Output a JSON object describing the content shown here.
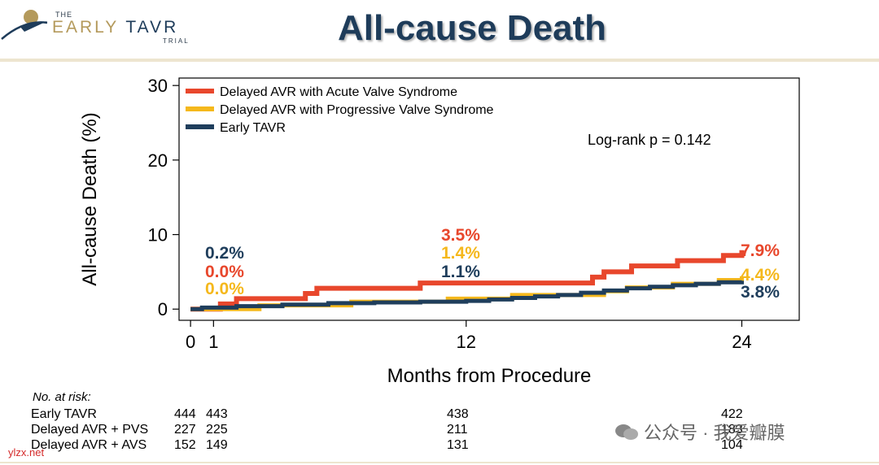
{
  "header": {
    "logo_the": "THE",
    "logo_early": "EARLY",
    "logo_tavr": "TAVR",
    "logo_trial": "TRIAL",
    "title": "All-cause Death"
  },
  "colors": {
    "acute": "#e8472c",
    "progressive": "#f5b81c",
    "early": "#1f3e5c"
  },
  "chart_data": {
    "type": "line",
    "title": "All-cause Death",
    "xlabel": "Months from Procedure",
    "ylabel": "All-cause Death (%)",
    "xlim": [
      -0.5,
      26.5
    ],
    "ylim": [
      -1.5,
      31
    ],
    "xticks": [
      0,
      1,
      12,
      24
    ],
    "yticks": [
      0,
      10,
      20,
      30
    ],
    "legend_position": "top-left",
    "annotation": "Log-rank p = 0.142",
    "series": [
      {
        "name": "Delayed AVR with Acute Valve Syndrome",
        "color": "#e8472c",
        "x": [
          0,
          1,
          1.3,
          2,
          3,
          4,
          5,
          5.5,
          6,
          7,
          8,
          9,
          10,
          11,
          12,
          13,
          14,
          15,
          16,
          17,
          17.5,
          18,
          19,
          19.2,
          20,
          21,
          21.2,
          22,
          23,
          23.2,
          24
        ],
        "y": [
          0,
          0,
          0.7,
          1.4,
          1.4,
          1.4,
          2.1,
          2.8,
          2.8,
          2.8,
          2.8,
          2.8,
          3.5,
          3.5,
          3.5,
          3.5,
          3.5,
          3.5,
          3.5,
          3.5,
          4.3,
          5.0,
          5.0,
          5.8,
          5.8,
          5.8,
          6.5,
          6.5,
          6.5,
          7.2,
          7.9
        ]
      },
      {
        "name": "Delayed AVR with Progressive Valve Syndrome",
        "color": "#f5b81c",
        "x": [
          0,
          1,
          2,
          3,
          4,
          5,
          6,
          7,
          8,
          9,
          10,
          11,
          11.2,
          12,
          13,
          14,
          15,
          16,
          17,
          18,
          19,
          20,
          21,
          22,
          23,
          24
        ],
        "y": [
          0,
          0,
          0,
          0.5,
          0.5,
          0.5,
          0.5,
          1.0,
          1.0,
          1.0,
          1.0,
          1.0,
          1.4,
          1.4,
          1.4,
          1.9,
          1.9,
          1.9,
          1.9,
          2.4,
          2.9,
          2.9,
          3.4,
          3.4,
          3.9,
          4.4
        ]
      },
      {
        "name": "Early TAVR",
        "color": "#1f3e5c",
        "x": [
          0,
          0.5,
          1,
          2,
          3,
          4,
          5,
          6,
          7,
          8,
          9,
          10,
          11,
          12,
          13,
          14,
          15,
          16,
          17,
          18,
          19,
          20,
          21,
          22,
          23,
          24
        ],
        "y": [
          0,
          0.2,
          0.2,
          0.4,
          0.4,
          0.6,
          0.6,
          0.8,
          0.8,
          0.9,
          0.9,
          1.0,
          1.0,
          1.1,
          1.3,
          1.5,
          1.7,
          1.9,
          2.2,
          2.5,
          2.8,
          3.0,
          3.2,
          3.4,
          3.6,
          3.8
        ]
      }
    ],
    "data_labels": [
      {
        "text": "0.2%",
        "series": "Early TAVR",
        "month": 1
      },
      {
        "text": "0.0%",
        "series": "Delayed AVR with Acute Valve Syndrome",
        "month": 1
      },
      {
        "text": "0.0%",
        "series": "Delayed AVR with Progressive Valve Syndrome",
        "month": 1
      },
      {
        "text": "3.5%",
        "series": "Delayed AVR with Acute Valve Syndrome",
        "month": 12
      },
      {
        "text": "1.4%",
        "series": "Delayed AVR with Progressive Valve Syndrome",
        "month": 12
      },
      {
        "text": "1.1%",
        "series": "Early TAVR",
        "month": 12
      },
      {
        "text": "7.9%",
        "series": "Delayed AVR with Acute Valve Syndrome",
        "month": 24
      },
      {
        "text": "4.4%",
        "series": "Delayed AVR with Progressive Valve Syndrome",
        "month": 24
      },
      {
        "text": "3.8%",
        "series": "Early TAVR",
        "month": 24
      }
    ]
  },
  "risk_table": {
    "title": "No. at risk:",
    "rows": [
      {
        "label": "Early TAVR",
        "values": [
          "444",
          "443",
          "438",
          "422"
        ]
      },
      {
        "label": "Delayed AVR + PVS",
        "values": [
          "227",
          "225",
          "211",
          "183"
        ]
      },
      {
        "label": "Delayed AVR + AVS",
        "values": [
          "152",
          "149",
          "131",
          "104"
        ]
      }
    ]
  },
  "watermark": {
    "text": "公众号 · 我爱瓣膜"
  },
  "source": "ylzx.net"
}
